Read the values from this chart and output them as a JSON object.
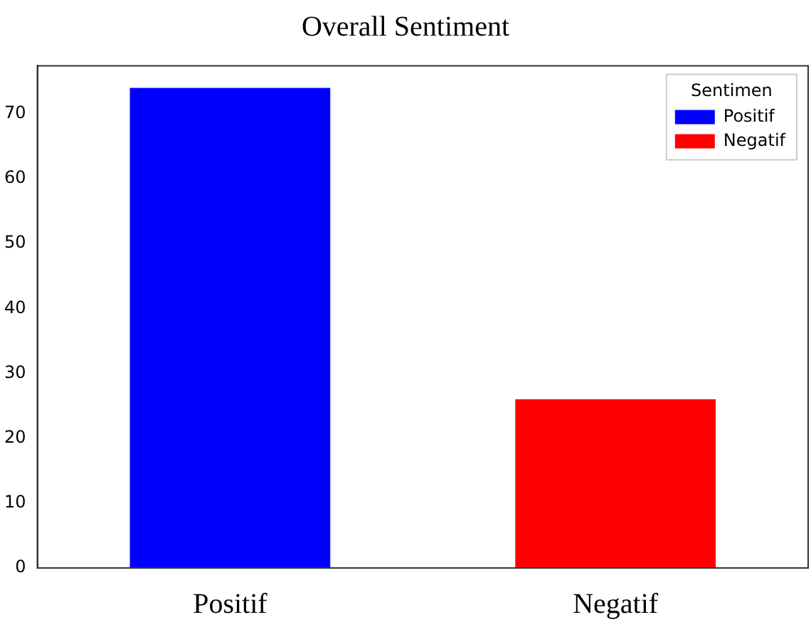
{
  "chart_data": {
    "type": "bar",
    "title": "Overall Sentiment",
    "categories": [
      "Positif",
      "Negatif"
    ],
    "series": [
      {
        "name": "Positif",
        "color": "#0000ff",
        "values": [
          74,
          null
        ]
      },
      {
        "name": "Negatif",
        "color": "#ff0000",
        "values": [
          null,
          26
        ]
      }
    ],
    "ylim": [
      0,
      77.4
    ],
    "yticks": [
      0,
      10,
      20,
      30,
      40,
      50,
      60,
      70
    ],
    "grid": false,
    "legend": "top right",
    "legend_title": "Sentimen"
  }
}
